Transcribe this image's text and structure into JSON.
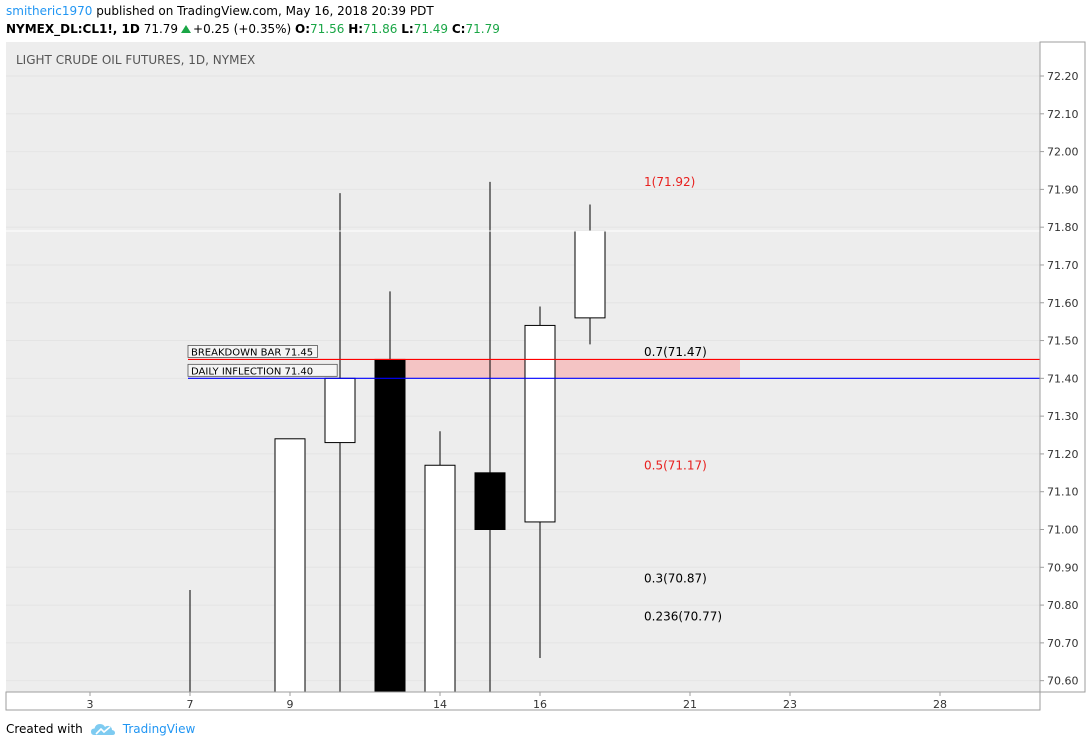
{
  "header": {
    "user": "smitheric1970",
    "published": " published on TradingView.com, May 16, 2018 20:39 PDT",
    "symbol": "NYMEX_DL:CL1!, 1D",
    "last": "71.79",
    "change": "+0.25 (+0.35%)",
    "o_label": "O:",
    "o_val": "71.56",
    "h_label": "H:",
    "h_val": "71.86",
    "l_label": "L:",
    "l_val": "71.49",
    "c_label": "C:",
    "c_val": "71.79"
  },
  "footer": {
    "created_with": "Created with",
    "brand": "TradingView"
  },
  "colors": {
    "plot_bg": "#ededed",
    "red_line": "#ff0000",
    "blue_line": "#0000ff",
    "zone_fill": "#f4c4c4",
    "fib_red": "#e8201e",
    "fib_black": "#000000",
    "up_candle": "#ffffff",
    "down_candle": "#000000"
  },
  "chart_data": {
    "type": "candlestick",
    "title": "LIGHT CRUDE OIL FUTURES, 1D, NYMEX",
    "ylim": [
      70.57,
      72.29
    ],
    "y_ticks": [
      "72.20",
      "72.10",
      "72.00",
      "71.90",
      "71.80",
      "71.70",
      "71.60",
      "71.50",
      "71.40",
      "71.30",
      "71.20",
      "71.10",
      "71.00",
      "70.90",
      "70.80",
      "70.70",
      "70.60"
    ],
    "x_ticks": [
      "3",
      "7",
      "9",
      "14",
      "16",
      "21",
      "23",
      "28"
    ],
    "candles": [
      {
        "date": "7",
        "open": null,
        "high": 70.84,
        "low": 70.57,
        "close": null,
        "wick_only": true
      },
      {
        "date": "9",
        "open": 70.57,
        "high": 71.24,
        "low": 70.57,
        "close": 71.24
      },
      {
        "date": "10",
        "open": 71.23,
        "high": 71.89,
        "low": 70.57,
        "close": 71.4
      },
      {
        "date": "11",
        "open": 71.45,
        "high": 71.63,
        "low": 70.57,
        "close": 70.57
      },
      {
        "date": "14",
        "open": 70.57,
        "high": 71.26,
        "low": 70.57,
        "close": 71.17
      },
      {
        "date": "15",
        "open": 71.15,
        "high": 71.92,
        "low": 70.57,
        "close": 71.0
      },
      {
        "date": "16",
        "open": 71.02,
        "high": 71.59,
        "low": 70.66,
        "close": 71.54
      },
      {
        "date": "17",
        "open": 71.56,
        "high": 71.86,
        "low": 71.49,
        "close": 71.79
      }
    ],
    "horizontal_lines": [
      {
        "label": "BREAKDOWN BAR 71.45",
        "value": 71.45,
        "color": "#ff0000",
        "price_label": "71.45"
      },
      {
        "label": "DAILY INFLECTION 71.40",
        "value": 71.4,
        "color": "#0000ff",
        "price_label": "71.40"
      }
    ],
    "last_price": {
      "value": 71.79,
      "label": "71.79"
    },
    "fib_levels": [
      {
        "text": "1(71.92)",
        "value": 71.92,
        "color": "#e8201e"
      },
      {
        "text": "0.7(71.47)",
        "value": 71.47,
        "color": "#000000"
      },
      {
        "text": "0.5(71.17)",
        "value": 71.17,
        "color": "#e8201e"
      },
      {
        "text": "0.3(70.87)",
        "value": 70.87,
        "color": "#000000"
      },
      {
        "text": "0.236(70.77)",
        "value": 70.77,
        "color": "#000000"
      }
    ],
    "zone": {
      "from": 71.4,
      "to": 71.45
    }
  }
}
